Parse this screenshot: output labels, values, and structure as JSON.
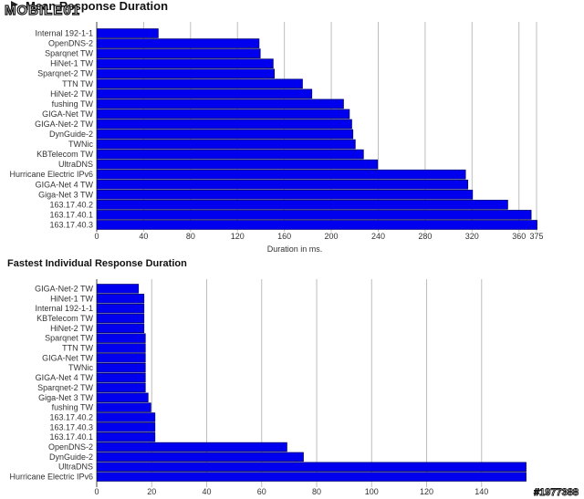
{
  "watermark": {
    "logo_text": "MOBILE01",
    "id_text": "#1977388"
  },
  "chart_data": [
    {
      "type": "bar",
      "orientation": "horizontal",
      "title": "Mean Response Duration",
      "xlabel": "Duration in ms.",
      "xlim": [
        0,
        375
      ],
      "ticks": [
        "0",
        "40",
        "80",
        "120",
        "160",
        "200",
        "240",
        "280",
        "320",
        "360",
        "375"
      ],
      "tick_values": [
        0,
        40,
        80,
        120,
        160,
        200,
        240,
        280,
        320,
        360,
        375
      ],
      "grid": true,
      "bar_color": "#0000ee",
      "categories": [
        "Internal 192-1-1",
        "OpenDNS-2",
        "Sparqnet TW",
        "HiNet-1 TW",
        "Sparqnet-2 TW",
        "TTN TW",
        "HiNet-2 TW",
        "fushing TW",
        "GIGA-Net TW",
        "GIGA-Net-2 TW",
        "DynGuide-2",
        "TWNic",
        "KBTelecom TW",
        "UltraDNS",
        "Hurricane Electric IPv6",
        "GIGA-Net 4 TW",
        "Giga-Net 3 TW",
        "163.17.40.2",
        "163.17.40.1",
        "163.17.40.3"
      ],
      "values": [
        52,
        138,
        139,
        150,
        151,
        175,
        183,
        210,
        215,
        217,
        218,
        220,
        227,
        239,
        314,
        316,
        320,
        350,
        370,
        375
      ]
    },
    {
      "type": "bar",
      "orientation": "horizontal",
      "title": "Fastest Individual Response Duration",
      "xlabel": "",
      "xlim": [
        0,
        156
      ],
      "ticks": [
        "0",
        "20",
        "40",
        "60",
        "80",
        "100",
        "120",
        "140"
      ],
      "tick_values": [
        0,
        20,
        40,
        60,
        80,
        100,
        120,
        140
      ],
      "grid": true,
      "bar_color": "#0000ee",
      "categories": [
        "GIGA-Net-2 TW",
        "HiNet-1 TW",
        "Internal 192-1-1",
        "KBTelecom TW",
        "HiNet-2 TW",
        "Sparqnet TW",
        "TTN TW",
        "GIGA-Net TW",
        "TWNic",
        "GIGA-Net 4 TW",
        "Sparqnet-2 TW",
        "Giga-Net 3 TW",
        "fushing TW",
        "163.17.40.2",
        "163.17.40.3",
        "163.17.40.1",
        "OpenDNS-2",
        "DynGuide-2",
        "UltraDNS",
        "Hurricane Electric IPv6"
      ],
      "values": [
        15,
        17,
        17,
        17,
        17,
        17.5,
        17.5,
        17.5,
        17.5,
        17.5,
        17.5,
        18.5,
        19.5,
        21,
        21,
        21,
        69,
        75,
        156,
        156
      ]
    }
  ]
}
